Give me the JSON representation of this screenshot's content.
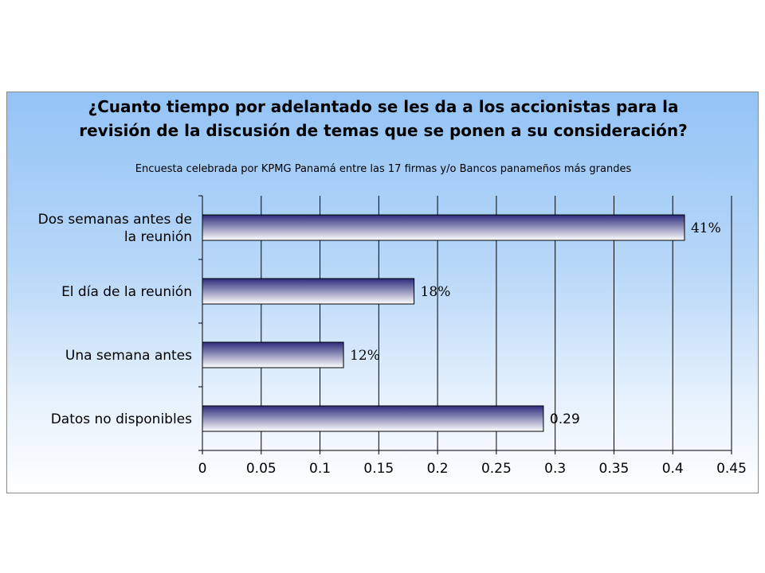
{
  "chart_data": {
    "type": "bar",
    "orientation": "horizontal",
    "title_lines": [
      "¿Cuanto tiempo por adelantado se les da a los accionistas para la",
      "revisión  de la discusión de temas que se ponen a su consideración?"
    ],
    "subtitle": "Encuesta celebrada por KPMG Panamá entre las 17 firmas y/o Bancos panameños más grandes",
    "categories": [
      [
        "Dos semanas antes de",
        "la reunión"
      ],
      [
        "El día de la reunión"
      ],
      [
        "Una semana antes"
      ],
      [
        "Datos no disponibles"
      ]
    ],
    "values": [
      0.41,
      0.18,
      0.12,
      0.29
    ],
    "data_labels": [
      "41%",
      "18%",
      "12%",
      "0.29"
    ],
    "xlim": [
      0,
      0.45
    ],
    "xticks": [
      "0",
      "0.05",
      "0.1",
      "0.15",
      "0.2",
      "0.25",
      "0.3",
      "0.35",
      "0.4",
      "0.45"
    ],
    "grid": true,
    "legend": false,
    "colors": {
      "bar_dark": "#2b2b7a",
      "bar_light": "#ffffff",
      "grid": "#000000",
      "background_top": "#93c3f5",
      "background_bottom": "#ffffff"
    }
  }
}
